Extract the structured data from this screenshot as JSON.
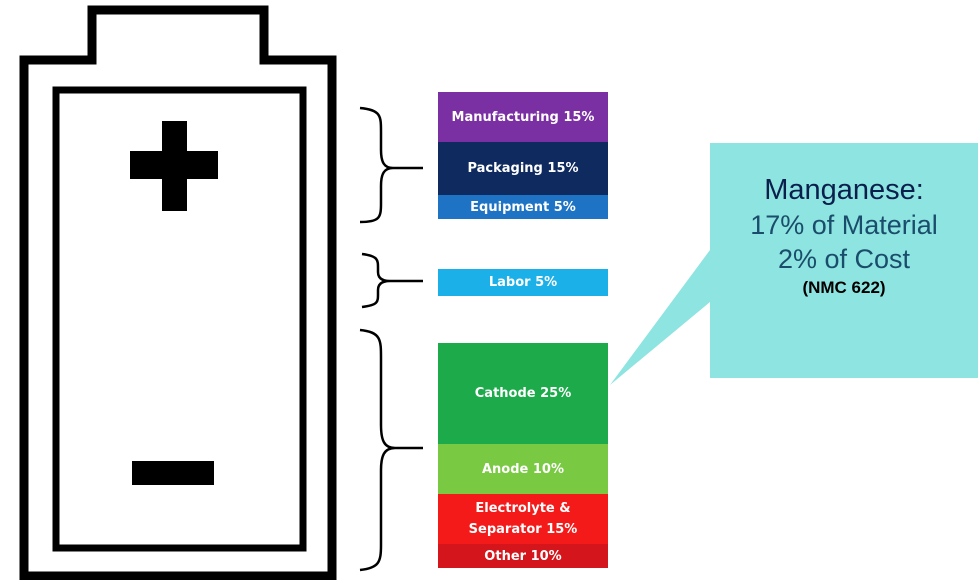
{
  "colors": {
    "manufacturing": "#7a2fa3",
    "packaging": "#0f2a5e",
    "equipment": "#1f73c4",
    "labor": "#1cb0e8",
    "cathode": "#1caa4b",
    "anode": "#7ac943",
    "electrolyte": "#f51a1a",
    "other": "#d4161c",
    "callout_bg": "#8ee4e0"
  },
  "segments": {
    "manufacturing": "Manufacturing 15%",
    "packaging": "Packaging 15%",
    "equipment": "Equipment 5%",
    "labor": "Labor 5%",
    "cathode": "Cathode 25%",
    "anode": "Anode 10%",
    "electrolyte_line1": "Electrolyte &",
    "electrolyte_line2": "Separator 15%",
    "other": "Other 10%"
  },
  "callout": {
    "title": "Manganese:",
    "line1": "17% of Material",
    "line2": "2% of Cost",
    "note": "(NMC 622)"
  }
}
